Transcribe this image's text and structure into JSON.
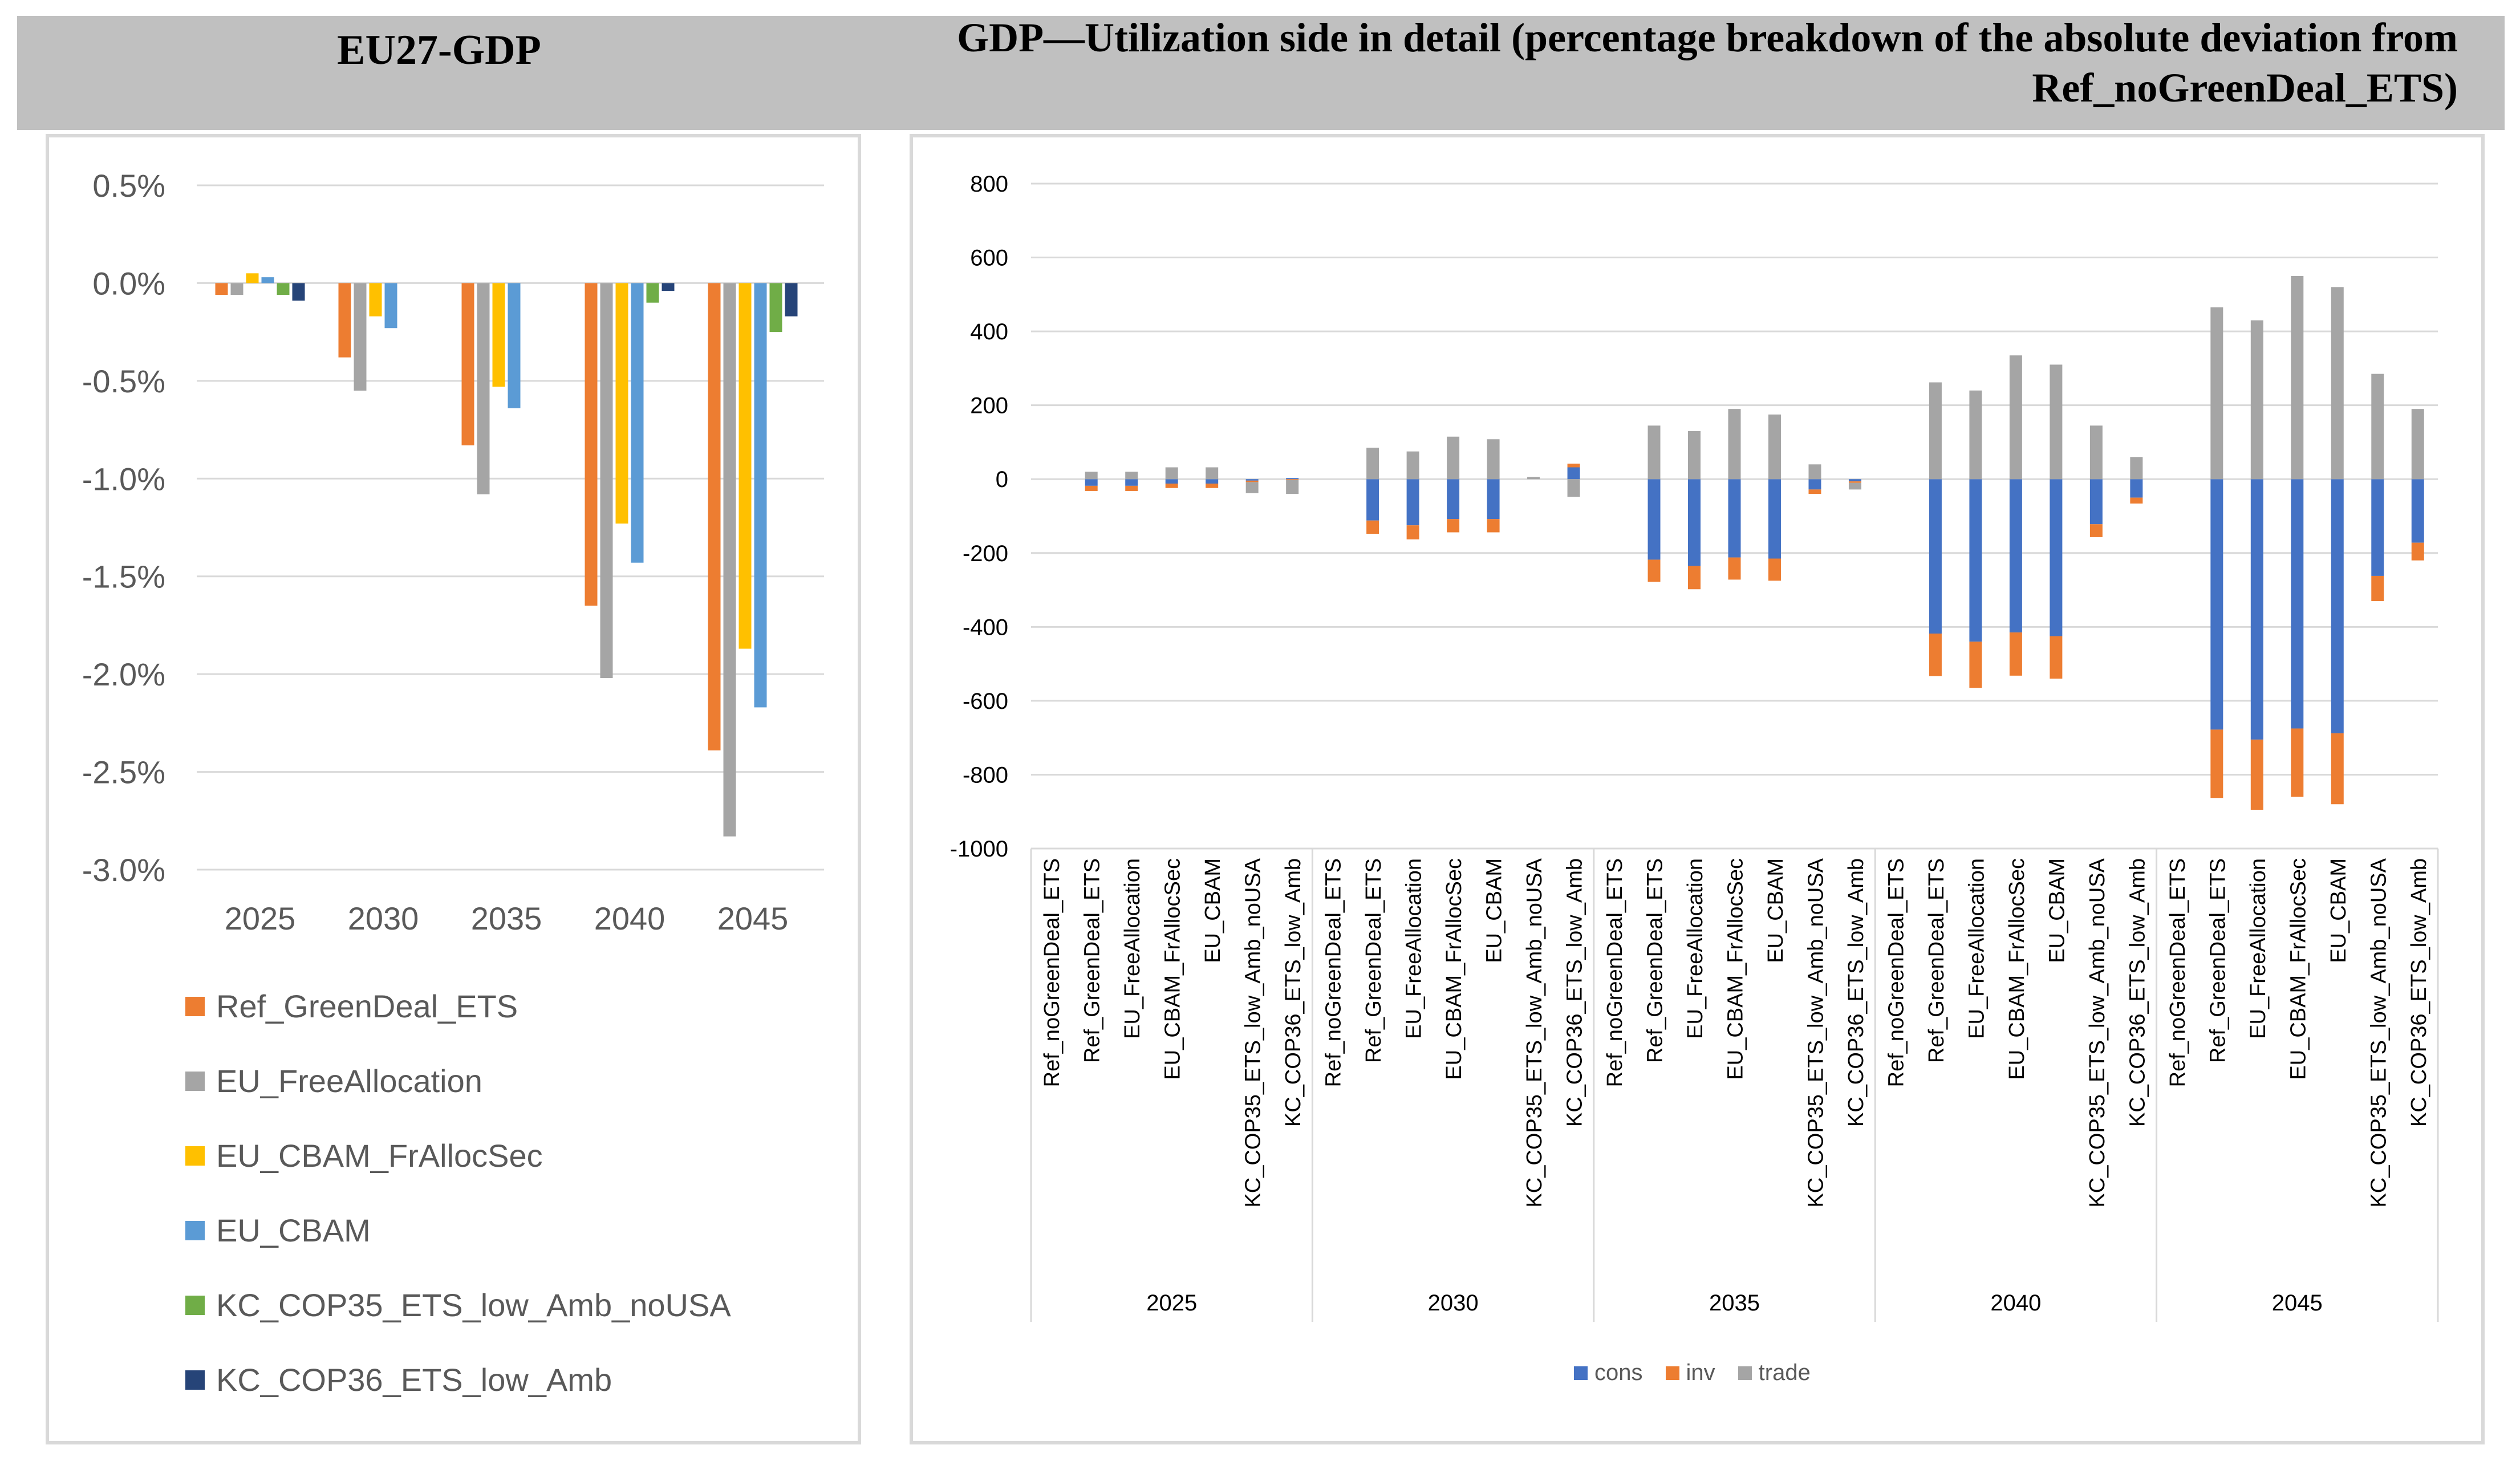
{
  "header": {
    "left_title": "EU27-GDP",
    "right_title": "GDP—Utilization side in detail (percentage breakdown of the absolute deviation from Ref_noGreenDeal_ETS)"
  },
  "colors": {
    "Ref_GreenDeal_ETS": "#ed7d31",
    "EU_FreeAllocation": "#a5a5a5",
    "EU_CBAM_FrAllocSec": "#ffc000",
    "EU_CBAM": "#5b9bd5",
    "KC_COP35_ETS_low_Amb_noUSA": "#70ad47",
    "KC_COP36_ETS_low_Amb": "#264478",
    "cons": "#4472c4",
    "inv": "#ed7d31",
    "trade": "#a5a5a5",
    "band": "#c0c0c0"
  },
  "chart_data": [
    {
      "type": "bar",
      "title": "EU27-GDP",
      "categories": [
        "2025",
        "2030",
        "2035",
        "2040",
        "2045"
      ],
      "yticks": [
        "0.5%",
        "0.0%",
        "-0.5%",
        "-1.0%",
        "-1.5%",
        "-2.0%",
        "-2.5%",
        "-3.0%"
      ],
      "ylim": [
        -3.0,
        0.5
      ],
      "unit": "%",
      "legend_position": "bottom",
      "series": [
        {
          "name": "Ref_GreenDeal_ETS",
          "values": [
            -0.06,
            -0.38,
            -0.83,
            -1.65,
            -2.39
          ]
        },
        {
          "name": "EU_FreeAllocation",
          "values": [
            -0.06,
            -0.55,
            -1.08,
            -2.02,
            -2.83
          ]
        },
        {
          "name": "EU_CBAM_FrAllocSec",
          "values": [
            0.05,
            -0.17,
            -0.53,
            -1.23,
            -1.87
          ]
        },
        {
          "name": "EU_CBAM",
          "values": [
            0.03,
            -0.23,
            -0.64,
            -1.43,
            -2.17
          ]
        },
        {
          "name": "KC_COP35_ETS_low_Amb_noUSA",
          "values": [
            -0.06,
            0.0,
            0.0,
            -0.1,
            -0.25
          ]
        },
        {
          "name": "KC_COP36_ETS_low_Amb",
          "values": [
            -0.09,
            0.0,
            0.0,
            -0.04,
            -0.17
          ]
        }
      ]
    },
    {
      "type": "bar",
      "stacked": true,
      "title": "GDP—Utilization side in detail",
      "groups": [
        "2025",
        "2030",
        "2035",
        "2040",
        "2045"
      ],
      "scenarios": [
        "Ref_noGreenDeal_ETS",
        "Ref_GreenDeal_ETS",
        "EU_FreeAllocation",
        "EU_CBAM_FrAllocSec",
        "EU_CBAM",
        "KC_COP35_ETS_low_Amb_noUSA",
        "KC_COP36_ETS_low_Amb"
      ],
      "yticks": [
        "800",
        "600",
        "400",
        "200",
        "0",
        "-200",
        "-400",
        "-600",
        "-800",
        "-1000"
      ],
      "ylim": [
        -1000,
        800
      ],
      "legend_position": "bottom",
      "series": [
        {
          "name": "cons",
          "values": [
            [
              0,
              -18,
              -18,
              -12,
              -12,
              -4,
              3
            ],
            [
              0,
              -112,
              -125,
              -108,
              -108,
              0,
              32
            ],
            [
              0,
              -218,
              -235,
              -212,
              -215,
              -28,
              -6
            ],
            [
              0,
              -418,
              -440,
              -415,
              -425,
              -122,
              -50
            ],
            [
              0,
              -678,
              -705,
              -675,
              -688,
              -262,
              -172
            ]
          ]
        },
        {
          "name": "inv",
          "values": [
            [
              0,
              -14,
              -14,
              -12,
              -12,
              -4,
              -2
            ],
            [
              0,
              -36,
              -38,
              -36,
              -36,
              0,
              10
            ],
            [
              0,
              -60,
              -63,
              -60,
              -60,
              -12,
              -4
            ],
            [
              0,
              -115,
              -125,
              -117,
              -115,
              -35,
              -16
            ],
            [
              0,
              -185,
              -190,
              -185,
              -192,
              -68,
              -48
            ]
          ]
        },
        {
          "name": "trade",
          "values": [
            [
              0,
              20,
              20,
              32,
              32,
              -30,
              -38
            ],
            [
              0,
              85,
              75,
              115,
              108,
              6,
              -48
            ],
            [
              0,
              145,
              130,
              190,
              175,
              40,
              -18
            ],
            [
              0,
              262,
              240,
              335,
              310,
              145,
              60
            ],
            [
              0,
              465,
              430,
              550,
              520,
              285,
              190
            ]
          ]
        }
      ]
    }
  ]
}
